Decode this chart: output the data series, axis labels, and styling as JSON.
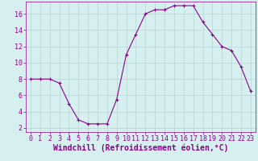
{
  "x": [
    0,
    1,
    2,
    3,
    4,
    5,
    6,
    7,
    8,
    9,
    10,
    11,
    12,
    13,
    14,
    15,
    16,
    17,
    18,
    19,
    20,
    21,
    22,
    23
  ],
  "y": [
    8,
    8,
    8,
    7.5,
    5,
    3,
    2.5,
    2.5,
    2.5,
    5.5,
    11,
    13.5,
    16,
    16.5,
    16.5,
    17,
    17,
    17,
    15,
    13.5,
    12,
    11.5,
    9.5,
    6.5
  ],
  "line_color": "#8B008B",
  "marker": "+",
  "marker_size": 3,
  "background_color": "#d6f0f0",
  "grid_color": "#b8d4d4",
  "xlabel": "Windchill (Refroidissement éolien,°C)",
  "xlabel_fontsize": 7,
  "tick_fontsize": 6,
  "ylim": [
    1.5,
    17.5
  ],
  "xlim": [
    -0.5,
    23.5
  ],
  "yticks": [
    2,
    4,
    6,
    8,
    10,
    12,
    14,
    16
  ],
  "xticks": [
    0,
    1,
    2,
    3,
    4,
    5,
    6,
    7,
    8,
    9,
    10,
    11,
    12,
    13,
    14,
    15,
    16,
    17,
    18,
    19,
    20,
    21,
    22,
    23
  ]
}
